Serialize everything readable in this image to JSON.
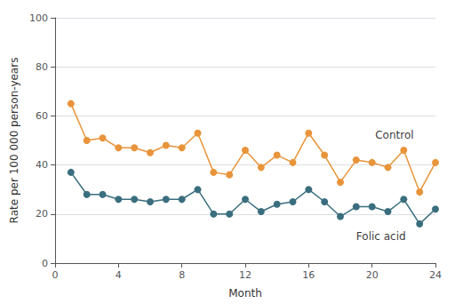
{
  "chart_data": {
    "type": "line",
    "x_label": "Month",
    "y_label": "Rate per 100 000 person-years",
    "x": [
      1,
      2,
      3,
      4,
      5,
      6,
      7,
      8,
      9,
      10,
      11,
      12,
      13,
      14,
      15,
      16,
      17,
      18,
      19,
      20,
      21,
      22,
      23,
      24
    ],
    "series": [
      {
        "name": "Control",
        "color": "#E8943A",
        "marker": "circle",
        "values": [
          65,
          50,
          51,
          47,
          47,
          45,
          48,
          47,
          53,
          37,
          36,
          46,
          39,
          44,
          41,
          53,
          44,
          33,
          42,
          41,
          39,
          46,
          29,
          41
        ]
      },
      {
        "name": "Folic acid",
        "color": "#3A6E7E",
        "marker": "circle",
        "values": [
          37,
          28,
          28,
          26,
          26,
          25,
          26,
          26,
          30,
          20,
          20,
          26,
          21,
          24,
          25,
          30,
          25,
          19,
          23,
          23,
          21,
          26,
          16,
          22
        ]
      }
    ],
    "annotations": [
      {
        "text": "Control",
        "x": 20.2,
        "y": 52
      },
      {
        "text": "Folic acid",
        "x": 19.0,
        "y": 11
      }
    ],
    "xlim": [
      0,
      24
    ],
    "xticks": [
      0,
      4,
      8,
      12,
      16,
      20,
      24
    ],
    "ylim": [
      0,
      100
    ],
    "yticks": [
      0,
      20,
      40,
      60,
      80,
      100
    ],
    "grid": true,
    "legend": false
  }
}
